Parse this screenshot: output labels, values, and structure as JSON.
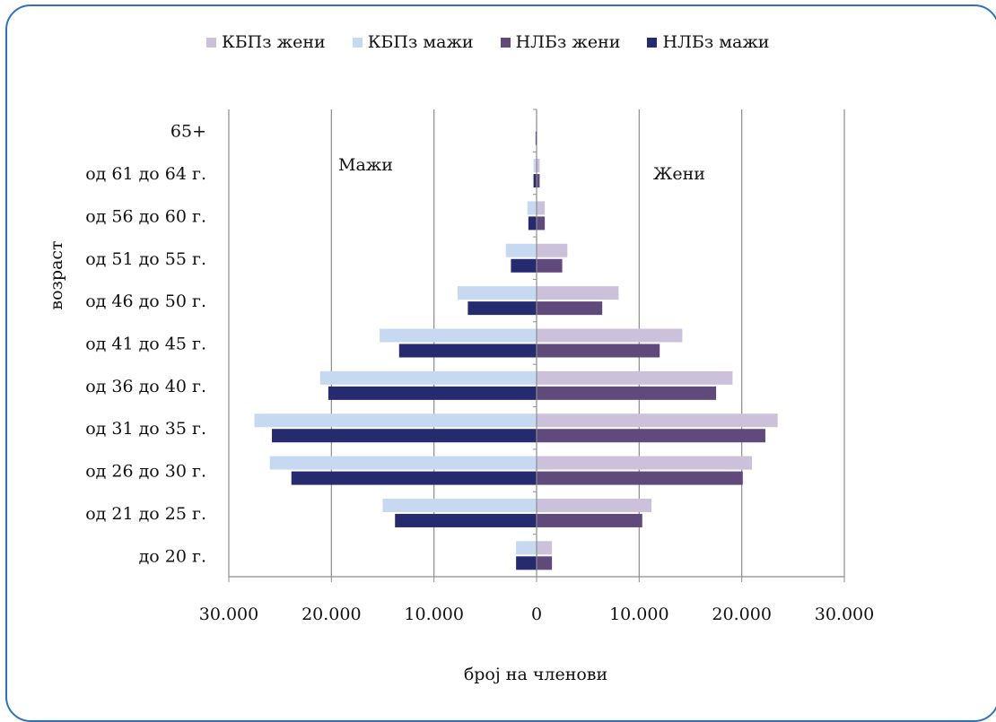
{
  "chart_data": {
    "type": "bar",
    "orientation": "horizontal",
    "categories": [
      "65+",
      "од 61 до 64 г.",
      "од 56 до 60 г.",
      "од 51 до 55 г.",
      "од 46 до 50 г.",
      "од 41 до 45 г.",
      "од 36 до 40 г.",
      "од 31 до 35 г.",
      "од 26 до 30  г.",
      "од 21 до 25 г.",
      "до 20 г."
    ],
    "series": [
      {
        "name": "КБПз жени",
        "side": "right",
        "color": "#ccc1da",
        "values": [
          50,
          300,
          800,
          3000,
          8000,
          14200,
          19100,
          23500,
          21000,
          11200,
          1500
        ]
      },
      {
        "name": "КБПз мажи",
        "side": "left",
        "color": "#c6d9f0",
        "values": [
          50,
          300,
          900,
          3000,
          7700,
          15300,
          21100,
          27500,
          26000,
          15000,
          2000
        ]
      },
      {
        "name": "НЛБз жени",
        "side": "right",
        "color": "#604a7b",
        "values": [
          50,
          300,
          800,
          2500,
          6400,
          12000,
          17500,
          22300,
          20100,
          10300,
          1500
        ]
      },
      {
        "name": "НЛБз мажи",
        "side": "left",
        "color": "#262a6e",
        "values": [
          100,
          300,
          800,
          2500,
          6700,
          13400,
          20300,
          25800,
          23900,
          13800,
          2000
        ]
      }
    ],
    "x_ticks": [
      "30.000",
      "20.000",
      "10.000",
      "0",
      "10.000",
      "20.000",
      "30.000"
    ],
    "xlim": [
      -30000,
      30000
    ],
    "xlabel": "број на членови",
    "ylabel": "возраст",
    "annotations": {
      "left": "Мажи",
      "right": "Жени"
    },
    "legend_position": "top",
    "grid": true
  }
}
